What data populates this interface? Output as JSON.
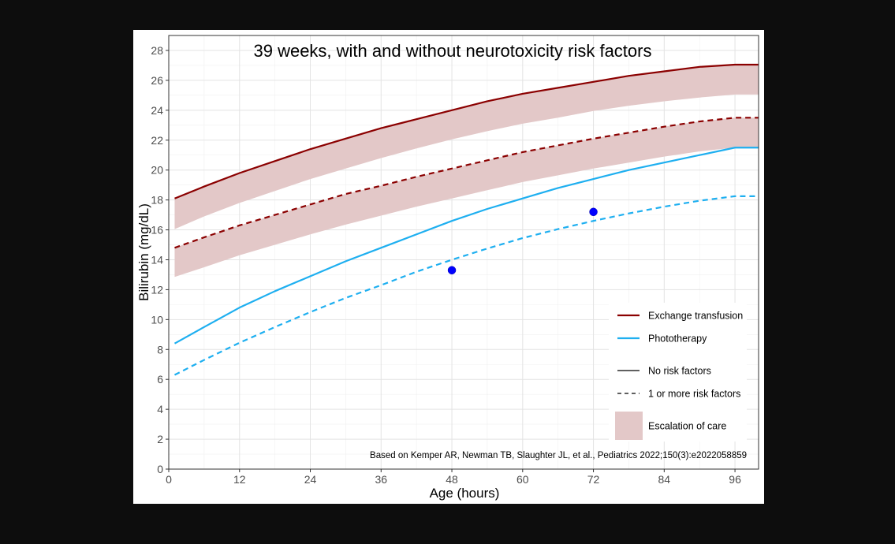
{
  "chart_data": {
    "type": "line",
    "title": "39 weeks, with and without neurotoxicity risk factors",
    "xlabel": "Age (hours)",
    "ylabel": "Bilirubin (mg/dL)",
    "xlim": [
      0,
      100
    ],
    "ylim": [
      0,
      29
    ],
    "x_ticks": [
      0,
      12,
      24,
      36,
      48,
      60,
      72,
      84,
      96
    ],
    "y_ticks": [
      0,
      2,
      4,
      6,
      8,
      10,
      12,
      14,
      16,
      18,
      20,
      22,
      24,
      26,
      28
    ],
    "grid": true,
    "legend_position": "bottom-right",
    "x": [
      1,
      6,
      12,
      18,
      24,
      30,
      36,
      42,
      48,
      54,
      60,
      66,
      72,
      78,
      84,
      90,
      96,
      100
    ],
    "series": [
      {
        "name": "Exchange transfusion",
        "risk": "none",
        "style": "solid",
        "color": "#8b0000",
        "values": [
          18.1,
          18.9,
          19.8,
          20.6,
          21.4,
          22.1,
          22.8,
          23.4,
          24.0,
          24.6,
          25.1,
          25.5,
          25.9,
          26.3,
          26.6,
          26.9,
          27.05,
          27.05
        ]
      },
      {
        "name": "Exchange transfusion",
        "risk": "one-or-more",
        "style": "dashed",
        "color": "#8b0000",
        "values": [
          14.8,
          15.5,
          16.3,
          17.0,
          17.7,
          18.4,
          18.95,
          19.55,
          20.1,
          20.65,
          21.2,
          21.65,
          22.1,
          22.5,
          22.9,
          23.25,
          23.5,
          23.5
        ]
      },
      {
        "name": "Phototherapy",
        "risk": "none",
        "style": "solid",
        "color": "#1eaff0",
        "values": [
          8.4,
          9.5,
          10.8,
          11.9,
          12.9,
          13.9,
          14.8,
          15.7,
          16.6,
          17.4,
          18.1,
          18.8,
          19.4,
          20.0,
          20.5,
          21.0,
          21.5,
          21.5
        ]
      },
      {
        "name": "Phototherapy",
        "risk": "one-or-more",
        "style": "dashed",
        "color": "#1eaff0",
        "values": [
          6.3,
          7.3,
          8.45,
          9.5,
          10.5,
          11.45,
          12.3,
          13.2,
          14.0,
          14.75,
          15.45,
          16.05,
          16.6,
          17.1,
          17.55,
          17.95,
          18.25,
          18.25
        ]
      }
    ],
    "bands": [
      {
        "name": "Escalation of care",
        "risk": "none",
        "color": "#e3c8c8",
        "lower": [
          16.05,
          16.9,
          17.8,
          18.6,
          19.4,
          20.1,
          20.8,
          21.45,
          22.05,
          22.6,
          23.1,
          23.5,
          23.95,
          24.3,
          24.6,
          24.85,
          25.05,
          25.05
        ],
        "upper": [
          18.1,
          18.9,
          19.8,
          20.6,
          21.4,
          22.1,
          22.8,
          23.4,
          24.0,
          24.6,
          25.1,
          25.5,
          25.9,
          26.3,
          26.6,
          26.9,
          27.05,
          27.05
        ]
      },
      {
        "name": "Escalation of care",
        "risk": "one-or-more",
        "color": "#e3c8c8",
        "lower": [
          12.85,
          13.5,
          14.3,
          15.0,
          15.7,
          16.35,
          16.95,
          17.55,
          18.1,
          18.65,
          19.2,
          19.65,
          20.1,
          20.5,
          20.9,
          21.25,
          21.5,
          21.5
        ],
        "upper": [
          14.8,
          15.5,
          16.3,
          17.0,
          17.7,
          18.4,
          18.95,
          19.55,
          20.1,
          20.65,
          21.2,
          21.65,
          22.1,
          22.5,
          22.9,
          23.25,
          23.5,
          23.5
        ]
      }
    ],
    "points": [
      {
        "x": 48,
        "y": 13.3,
        "color": "#0000ff"
      },
      {
        "x": 72,
        "y": 17.2,
        "color": "#0000ff"
      }
    ],
    "legend": {
      "items": [
        {
          "label": "Exchange transfusion",
          "kind": "line",
          "style": "solid",
          "color": "#8b0000"
        },
        {
          "label": "Phototherapy",
          "kind": "line",
          "style": "solid",
          "color": "#1eaff0"
        },
        {
          "label": "No risk factors",
          "kind": "line",
          "style": "solid",
          "color": "#000000"
        },
        {
          "label": "1 or more risk factors",
          "kind": "line",
          "style": "dashed",
          "color": "#000000"
        },
        {
          "label": "Escalation of care",
          "kind": "box",
          "style": "solid",
          "color": "#e3c8c8"
        }
      ]
    },
    "caption": "Based on Kemper AR, Newman TB, Slaughter JL, et al., Pediatrics 2022;150(3):e2022058859"
  }
}
